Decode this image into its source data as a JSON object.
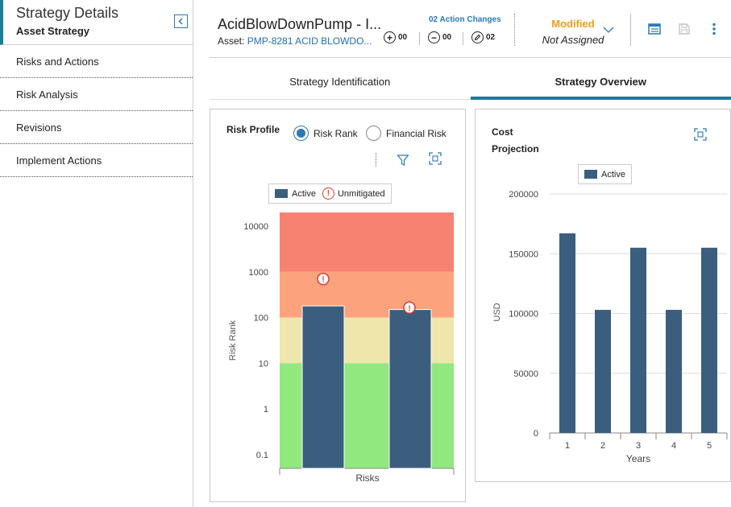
{
  "sidebar": {
    "title": "Strategy Details",
    "subtitle": "Asset Strategy",
    "items": [
      {
        "label": "Risks and Actions"
      },
      {
        "label": "Risk Analysis"
      },
      {
        "label": "Revisions"
      },
      {
        "label": "Implement Actions"
      }
    ]
  },
  "header": {
    "title": "AcidBlowDownPump - I...",
    "asset_prefix": "Asset:",
    "asset_link": "PMP-8281 ACID BLOWDO...",
    "action_changes": "02 Action Changes",
    "counts": {
      "added": "00",
      "removed": "00",
      "edited": "02"
    },
    "state": "Modified",
    "assigned": "Not Assigned"
  },
  "tabs": [
    {
      "label": "Strategy Identification",
      "active": false
    },
    {
      "label": "Strategy Overview",
      "active": true
    }
  ],
  "risk_profile": {
    "title": "Risk Profile",
    "options": [
      "Risk Rank",
      "Financial Risk"
    ],
    "selected": "Risk Rank",
    "legend": {
      "active": "Active",
      "unmitigated": "Unmitigated"
    }
  },
  "cost_projection": {
    "title_line1": "Cost",
    "title_line2": "Projection",
    "legend": {
      "active": "Active"
    }
  },
  "colors": {
    "accent": "#1b7d99",
    "bar": "#3b5e7e",
    "modified": "#f29c1f",
    "band_red": "#f88272",
    "band_orange": "#fca37e",
    "band_yellow": "#eee6aa",
    "band_green": "#90e87f"
  },
  "chart_data": [
    {
      "type": "bar",
      "title": "",
      "xlabel": "Risks",
      "ylabel": "Risk Rank",
      "scale": "log",
      "ylim": [
        0.05,
        20000
      ],
      "yticks": [
        "10000",
        "1000",
        "100",
        "10",
        "1",
        "0.1"
      ],
      "series": [
        {
          "name": "Active",
          "values": [
            180,
            150
          ]
        }
      ],
      "unmitigated": [
        700,
        165
      ],
      "bands": [
        {
          "from": 1000,
          "to": 20000,
          "color": "#f88272"
        },
        {
          "from": 100,
          "to": 1000,
          "color": "#fca37e"
        },
        {
          "from": 10,
          "to": 100,
          "color": "#eee6aa"
        },
        {
          "from": 0.05,
          "to": 10,
          "color": "#90e87f"
        }
      ]
    },
    {
      "type": "bar",
      "title": "",
      "xlabel": "Years",
      "ylabel": "USD",
      "ylim": [
        0,
        200000
      ],
      "yticks": [
        "200000",
        "150000",
        "100000",
        "50000",
        "0"
      ],
      "categories": [
        "1",
        "2",
        "3",
        "4",
        "5"
      ],
      "series": [
        {
          "name": "Active",
          "values": [
            167000,
            103000,
            155000,
            103000,
            155000
          ]
        }
      ]
    }
  ]
}
